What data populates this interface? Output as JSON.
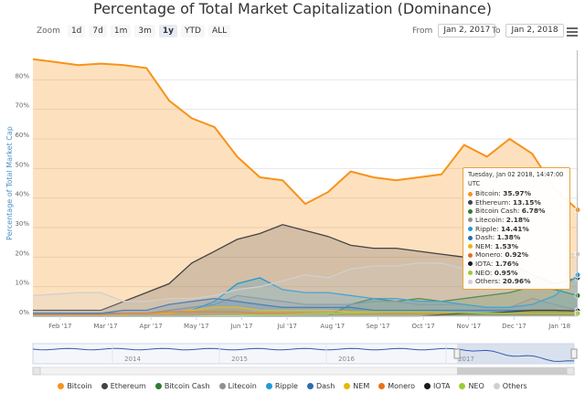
{
  "chart_data": {
    "type": "area",
    "title": "Percentage of Total Market Capitalization (Dominance)",
    "ylabel": "Percentage of Total Market Cap",
    "yticks": [
      "0%",
      "10%",
      "20%",
      "30%",
      "40%",
      "50%",
      "60%",
      "70%",
      "80%"
    ],
    "ylim": [
      0,
      90
    ],
    "xticks": [
      "Feb '17",
      "Mar '17",
      "Apr '17",
      "May '17",
      "Jun '17",
      "Jul '17",
      "Aug '17",
      "Sep '17",
      "Oct '17",
      "Nov '17",
      "Dec '17",
      "Jan '18"
    ],
    "x": [
      0,
      0.5,
      1,
      1.5,
      2,
      2.5,
      3,
      3.5,
      4,
      4.5,
      5,
      5.5,
      6,
      6.5,
      7,
      7.5,
      8,
      8.5,
      9,
      9.5,
      10,
      10.5,
      11,
      11.5,
      12
    ],
    "series": [
      {
        "name": "Bitcoin",
        "color": "#f7931a",
        "values": [
          87,
          86,
          85,
          85.5,
          85,
          84,
          73,
          67,
          64,
          54,
          47,
          46,
          38,
          42,
          49,
          47,
          46,
          47,
          48,
          58,
          54,
          60,
          55,
          43,
          36
        ]
      },
      {
        "name": "Ethereum",
        "color": "#434348",
        "values": [
          2,
          2,
          2,
          2,
          5,
          8,
          11,
          18,
          22,
          26,
          28,
          31,
          29,
          27,
          24,
          23,
          23,
          22,
          21,
          20,
          15,
          18,
          14,
          11,
          13
        ]
      },
      {
        "name": "Bitcoin Cash",
        "color": "#2e7d32",
        "values": [
          0,
          0,
          0,
          0,
          0,
          0,
          0,
          0,
          0,
          0,
          0,
          0,
          0,
          0,
          4,
          6,
          5,
          6,
          5,
          6,
          7,
          8,
          10,
          9,
          7
        ]
      },
      {
        "name": "Litecoin",
        "color": "#909090",
        "values": [
          1,
          1,
          1,
          1,
          1,
          1,
          2,
          3,
          4,
          7,
          6,
          5,
          4,
          4,
          4,
          5,
          5,
          4,
          4,
          4,
          3,
          3,
          6,
          4,
          2
        ]
      },
      {
        "name": "Ripple",
        "color": "#1f9ad6",
        "values": [
          1,
          1,
          1,
          1,
          1,
          1,
          1,
          2,
          5,
          11,
          13,
          9,
          8,
          8,
          7,
          6,
          6,
          5,
          5,
          4,
          3,
          3,
          4,
          7,
          14
        ]
      },
      {
        "name": "Dash",
        "color": "#2b6cb0",
        "values": [
          1,
          1,
          1,
          1,
          2,
          2,
          4,
          5,
          6,
          5,
          4,
          3,
          3,
          3,
          3,
          2,
          2,
          2,
          2,
          2,
          2,
          2,
          2,
          2,
          1.4
        ]
      },
      {
        "name": "NEM",
        "color": "#e8b800",
        "values": [
          0.5,
          0.5,
          0.5,
          0.5,
          0.7,
          1,
          1,
          2,
          3,
          3,
          2,
          2,
          2,
          2,
          1.5,
          1.5,
          1.5,
          1.3,
          1.2,
          1,
          1,
          1,
          1.5,
          1.5,
          1.5
        ]
      },
      {
        "name": "Monero",
        "color": "#e8701a",
        "values": [
          0.5,
          0.5,
          0.6,
          0.6,
          1,
          1,
          1.5,
          1.5,
          1.5,
          1.5,
          1,
          1,
          1,
          1,
          1,
          1,
          1,
          1,
          1,
          1,
          1,
          1,
          1,
          1,
          0.9
        ]
      },
      {
        "name": "IOTA",
        "color": "#1a1a1a",
        "values": [
          0,
          0,
          0,
          0,
          0,
          0,
          0,
          0,
          0,
          0,
          0,
          0,
          0,
          0,
          0,
          0,
          0,
          0,
          0.5,
          1,
          1,
          1.5,
          2,
          2,
          1.8
        ]
      },
      {
        "name": "NEO",
        "color": "#9acd32",
        "values": [
          0,
          0,
          0,
          0,
          0,
          0,
          0,
          0,
          0.2,
          0.3,
          0.5,
          0.6,
          0.8,
          1,
          1.2,
          1.3,
          1.5,
          1.5,
          1.4,
          1.2,
          1,
          1,
          1,
          1,
          0.95
        ]
      },
      {
        "name": "Others",
        "color": "#cfcfcf",
        "values": [
          7,
          7.5,
          8,
          8,
          5,
          5,
          6,
          6,
          7,
          9,
          10,
          12,
          14,
          13,
          16,
          17,
          17,
          18,
          18,
          16,
          16,
          17,
          19,
          21,
          21
        ]
      }
    ],
    "navigator_labels": [
      "2014",
      "2015",
      "2016",
      "2017"
    ],
    "tooltip": {
      "date": "Tuesday, Jan 02 2018, 14:47:00 UTC",
      "rows": [
        {
          "label": "Bitcoin",
          "value": "35.97%",
          "color": "#f7931a"
        },
        {
          "label": "Ethereum",
          "value": "13.15%",
          "color": "#434348"
        },
        {
          "label": "Bitcoin Cash",
          "value": "6.78%",
          "color": "#2e7d32"
        },
        {
          "label": "Litecoin",
          "value": "2.18%",
          "color": "#909090"
        },
        {
          "label": "Ripple",
          "value": "14.41%",
          "color": "#1f9ad6"
        },
        {
          "label": "Dash",
          "value": "1.38%",
          "color": "#2b6cb0"
        },
        {
          "label": "NEM",
          "value": "1.53%",
          "color": "#e8b800"
        },
        {
          "label": "Monero",
          "value": "0.92%",
          "color": "#e8701a"
        },
        {
          "label": "IOTA",
          "value": "1.76%",
          "color": "#1a1a1a"
        },
        {
          "label": "NEO",
          "value": "0.95%",
          "color": "#9acd32"
        },
        {
          "label": "Others",
          "value": "20.96%",
          "color": "#cfcfcf"
        }
      ]
    }
  },
  "zoom": {
    "label": "Zoom",
    "buttons": [
      "1d",
      "7d",
      "1m",
      "3m",
      "1y",
      "YTD",
      "ALL"
    ],
    "active": "1y"
  },
  "range": {
    "from_label": "From",
    "from_value": "Jan 2, 2017",
    "to_label": "To",
    "to_value": "Jan 2, 2018"
  },
  "icons": {
    "menu": "hamburger-menu-icon"
  }
}
